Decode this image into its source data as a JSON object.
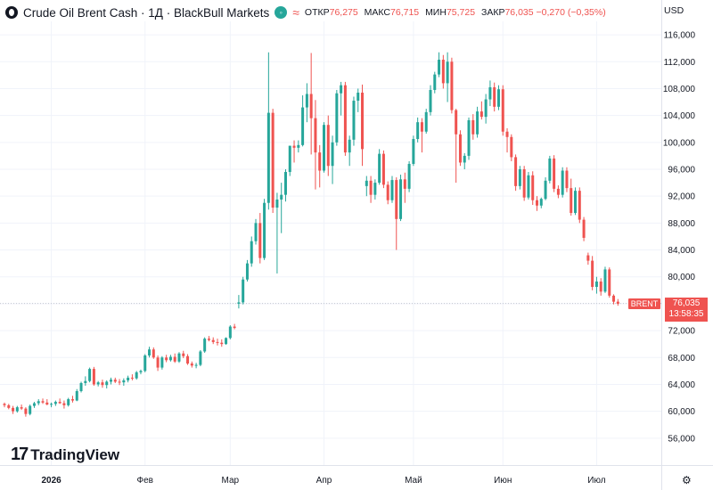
{
  "header": {
    "title": "Crude Oil Brent Cash · 1Д · BlackBull Markets",
    "ohlc": [
      {
        "label": "ОТКР",
        "value": "76,275"
      },
      {
        "label": "МАКС",
        "value": "76,715"
      },
      {
        "label": "МИН",
        "value": "75,725"
      },
      {
        "label": "ЗАКР",
        "value": "76,035 −0,270 (−0,35%)"
      }
    ],
    "currency": "USD",
    "status_glyph": "≈"
  },
  "branding": {
    "mark": "17",
    "name": "TradingView"
  },
  "last_price": {
    "symbol": "BRENT",
    "price": "76,035",
    "countdown": "13:58:35",
    "value": 76.035
  },
  "colors": {
    "up": "#26a69a",
    "down": "#ef5350",
    "grid": "#f0f3fa",
    "axis_text": "#131722"
  },
  "chart_data": {
    "type": "candlestick",
    "title": "Crude Oil Brent Cash · 1Д · BlackBull Markets",
    "ylim": [
      52,
      118
    ],
    "y_ticks": [
      56,
      60,
      64,
      68,
      72,
      76,
      80,
      84,
      88,
      92,
      96,
      100,
      104,
      108,
      112,
      116
    ],
    "y_tick_labels": [
      "56,000",
      "60,000",
      "64,000",
      "68,000",
      "72,000",
      "76,000",
      "80,000",
      "84,000",
      "88,000",
      "92,000",
      "96,000",
      "100,000",
      "104,000",
      "108,000",
      "112,000",
      "116,000"
    ],
    "x_labels": [
      {
        "label": "2026",
        "index": 11
      },
      {
        "label": "Фев",
        "index": 33
      },
      {
        "label": "Мар",
        "index": 53
      },
      {
        "label": "Апр",
        "index": 75
      },
      {
        "label": "Май",
        "index": 96
      },
      {
        "label": "Июн",
        "index": 117
      },
      {
        "label": "Июл",
        "index": 139
      }
    ],
    "candles": [
      [
        61.1,
        61.3,
        60.6,
        60.9
      ],
      [
        60.9,
        61.1,
        60.3,
        60.5
      ],
      [
        60.5,
        60.8,
        59.6,
        60.0
      ],
      [
        60.0,
        60.8,
        59.8,
        60.6
      ],
      [
        60.6,
        61.0,
        60.2,
        60.4
      ],
      [
        60.4,
        60.6,
        59.2,
        59.6
      ],
      [
        59.6,
        61.0,
        59.4,
        60.8
      ],
      [
        60.8,
        61.4,
        60.5,
        61.2
      ],
      [
        61.2,
        61.8,
        60.9,
        61.5
      ],
      [
        61.5,
        61.9,
        61.1,
        61.3
      ],
      [
        61.3,
        61.8,
        60.9,
        61.0
      ],
      [
        61.0,
        61.3,
        60.6,
        61.1
      ],
      [
        61.1,
        61.6,
        60.8,
        61.4
      ],
      [
        61.4,
        61.9,
        61.1,
        61.2
      ],
      [
        61.2,
        61.6,
        60.4,
        60.9
      ],
      [
        60.9,
        62.0,
        60.7,
        61.8
      ],
      [
        61.8,
        62.3,
        61.3,
        61.6
      ],
      [
        61.6,
        63.3,
        61.5,
        63.0
      ],
      [
        63.0,
        64.4,
        62.8,
        64.2
      ],
      [
        64.2,
        65.2,
        63.8,
        64.5
      ],
      [
        64.5,
        66.5,
        64.3,
        66.3
      ],
      [
        66.3,
        66.6,
        63.8,
        64.0
      ],
      [
        64.0,
        64.5,
        63.7,
        64.3
      ],
      [
        64.3,
        64.7,
        63.5,
        63.9
      ],
      [
        63.9,
        64.6,
        63.4,
        64.4
      ],
      [
        64.4,
        65.0,
        64.0,
        64.7
      ],
      [
        64.7,
        65.0,
        64.2,
        64.4
      ],
      [
        64.4,
        64.8,
        63.9,
        64.3
      ],
      [
        64.3,
        64.9,
        63.8,
        64.6
      ],
      [
        64.6,
        65.3,
        64.3,
        65.0
      ],
      [
        65.0,
        65.5,
        64.6,
        64.9
      ],
      [
        64.9,
        66.0,
        64.7,
        65.8
      ],
      [
        65.8,
        66.2,
        65.5,
        66.0
      ],
      [
        66.0,
        68.5,
        65.8,
        68.3
      ],
      [
        68.3,
        69.6,
        68.0,
        69.2
      ],
      [
        69.2,
        69.5,
        67.8,
        68.0
      ],
      [
        68.0,
        68.3,
        66.0,
        66.5
      ],
      [
        66.5,
        68.2,
        66.2,
        68.0
      ],
      [
        68.0,
        68.4,
        67.3,
        67.6
      ],
      [
        67.6,
        68.4,
        67.4,
        68.1
      ],
      [
        68.1,
        68.6,
        67.2,
        67.4
      ],
      [
        67.4,
        68.8,
        67.2,
        68.6
      ],
      [
        68.6,
        69.0,
        67.9,
        68.2
      ],
      [
        68.2,
        68.5,
        66.9,
        67.1
      ],
      [
        67.1,
        67.4,
        66.5,
        66.8
      ],
      [
        66.8,
        67.2,
        66.4,
        66.9
      ],
      [
        66.9,
        69.1,
        66.7,
        68.9
      ],
      [
        68.9,
        71.0,
        68.7,
        70.8
      ],
      [
        70.8,
        71.2,
        70.4,
        70.6
      ],
      [
        70.6,
        71.0,
        70.0,
        70.3
      ],
      [
        70.3,
        70.8,
        69.8,
        70.2
      ],
      [
        70.2,
        70.7,
        69.6,
        70.0
      ],
      [
        70.0,
        71.0,
        69.9,
        70.9
      ],
      [
        70.9,
        72.8,
        70.7,
        72.6
      ],
      [
        72.6,
        73.0,
        72.2,
        72.4
      ],
      [
        76.0,
        77.3,
        75.3,
        76.2
      ],
      [
        76.2,
        80.0,
        75.9,
        79.6
      ],
      [
        79.6,
        82.5,
        79.3,
        82.0
      ],
      [
        82.0,
        86.0,
        81.5,
        85.3
      ],
      [
        85.3,
        88.6,
        84.8,
        88.0
      ],
      [
        88.0,
        89.5,
        82.0,
        82.8
      ],
      [
        82.8,
        91.6,
        82.5,
        91.0
      ],
      [
        91.0,
        113.4,
        90.0,
        104.4
      ],
      [
        104.4,
        105.0,
        89.5,
        90.3
      ],
      [
        90.3,
        92.5,
        80.5,
        91.5
      ],
      [
        91.5,
        94.0,
        86.5,
        92.2
      ],
      [
        92.2,
        96.0,
        91.2,
        95.6
      ],
      [
        95.6,
        99.5,
        95.0,
        99.5
      ],
      [
        99.5,
        100.3,
        97.0,
        99.2
      ],
      [
        99.2,
        100.3,
        98.5,
        99.6
      ],
      [
        99.6,
        107.0,
        99.4,
        105.2
      ],
      [
        105.2,
        108.8,
        103.0,
        107.2
      ],
      [
        107.2,
        113.3,
        98.2,
        103.6
      ],
      [
        103.6,
        106.3,
        93.0,
        98.5
      ],
      [
        98.5,
        99.6,
        93.3,
        95.8
      ],
      [
        95.8,
        103.0,
        95.5,
        102.6
      ],
      [
        102.6,
        104.0,
        95.0,
        96.5
      ],
      [
        96.5,
        101.0,
        93.8,
        100.0
      ],
      [
        100.0,
        107.8,
        99.5,
        107.3
      ],
      [
        107.3,
        109.0,
        104.0,
        108.5
      ],
      [
        108.5,
        109.0,
        98.0,
        98.5
      ],
      [
        98.5,
        101.0,
        96.5,
        100.4
      ],
      [
        100.4,
        106.8,
        99.5,
        106.2
      ],
      [
        106.2,
        108.0,
        104.5,
        107.4
      ],
      [
        107.4,
        108.6,
        96.5,
        99.0
      ],
      [
        93.5,
        95.0,
        92.0,
        94.3
      ],
      [
        94.3,
        95.0,
        91.0,
        92.2
      ],
      [
        92.2,
        94.5,
        91.5,
        94.0
      ],
      [
        94.0,
        99.0,
        93.7,
        98.3
      ],
      [
        98.3,
        98.8,
        93.2,
        93.7
      ],
      [
        93.7,
        94.2,
        90.8,
        91.4
      ],
      [
        91.4,
        95.0,
        91.0,
        94.4
      ],
      [
        94.4,
        94.8,
        84.0,
        88.6
      ],
      [
        88.6,
        95.2,
        88.3,
        94.5
      ],
      [
        94.5,
        95.5,
        91.0,
        93.1
      ],
      [
        93.1,
        97.2,
        92.6,
        96.8
      ],
      [
        96.8,
        101.0,
        96.5,
        100.5
      ],
      [
        100.5,
        103.7,
        100.0,
        103.0
      ],
      [
        103.0,
        103.6,
        98.5,
        101.6
      ],
      [
        101.6,
        105.0,
        101.3,
        104.5
      ],
      [
        104.5,
        108.5,
        104.0,
        107.8
      ],
      [
        107.8,
        110.5,
        107.3,
        110.1
      ],
      [
        110.1,
        113.4,
        109.7,
        112.3
      ],
      [
        112.3,
        113.0,
        108.0,
        108.8
      ],
      [
        108.8,
        113.4,
        106.0,
        112.0
      ],
      [
        112.0,
        112.6,
        104.3,
        104.8
      ],
      [
        104.8,
        105.0,
        94.0,
        101.2
      ],
      [
        101.2,
        101.8,
        96.5,
        97.0
      ],
      [
        97.0,
        98.4,
        96.0,
        98.0
      ],
      [
        98.0,
        103.7,
        97.4,
        103.3
      ],
      [
        103.3,
        104.2,
        100.4,
        101.2
      ],
      [
        101.2,
        105.3,
        100.7,
        104.6
      ],
      [
        104.6,
        106.1,
        103.4,
        103.8
      ],
      [
        103.8,
        107.2,
        102.8,
        106.4
      ],
      [
        106.4,
        109.2,
        105.4,
        108.2
      ],
      [
        108.2,
        108.9,
        104.6,
        105.3
      ],
      [
        105.3,
        108.5,
        104.8,
        107.9
      ],
      [
        107.9,
        108.5,
        101.0,
        101.6
      ],
      [
        101.6,
        102.1,
        98.5,
        100.8
      ],
      [
        100.8,
        101.2,
        97.2,
        97.8
      ],
      [
        97.8,
        98.2,
        92.8,
        93.5
      ],
      [
        93.5,
        96.5,
        93.0,
        96.0
      ],
      [
        96.0,
        96.5,
        91.3,
        91.8
      ],
      [
        91.8,
        95.6,
        91.5,
        95.1
      ],
      [
        95.1,
        95.7,
        90.7,
        91.4
      ],
      [
        91.4,
        92.0,
        89.8,
        90.6
      ],
      [
        90.6,
        91.8,
        90.2,
        91.6
      ],
      [
        91.6,
        94.8,
        91.4,
        94.3
      ],
      [
        94.3,
        98.0,
        93.9,
        97.6
      ],
      [
        97.6,
        98.1,
        92.6,
        93.1
      ],
      [
        93.1,
        93.6,
        91.7,
        92.2
      ],
      [
        92.2,
        96.3,
        91.8,
        95.8
      ],
      [
        95.8,
        96.3,
        92.6,
        93.2
      ],
      [
        93.2,
        94.6,
        89.1,
        89.5
      ],
      [
        89.5,
        93.3,
        89.2,
        92.8
      ],
      [
        92.8,
        93.3,
        88.0,
        88.5
      ],
      [
        88.5,
        88.9,
        85.3,
        85.8
      ],
      [
        83.2,
        83.6,
        81.8,
        82.4
      ],
      [
        82.4,
        83.1,
        78.0,
        78.5
      ],
      [
        78.5,
        80.0,
        77.5,
        79.3
      ],
      [
        79.3,
        79.8,
        77.2,
        77.8
      ],
      [
        77.8,
        81.5,
        77.6,
        81.1
      ],
      [
        81.1,
        81.4,
        76.9,
        77.2
      ],
      [
        77.2,
        77.4,
        75.9,
        76.3
      ],
      [
        76.3,
        76.7,
        75.7,
        76.0
      ]
    ]
  }
}
